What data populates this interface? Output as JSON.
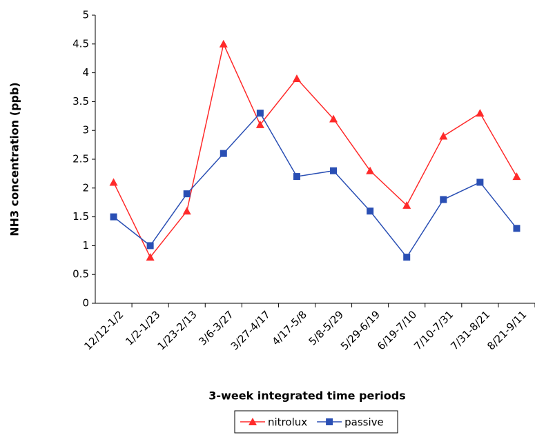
{
  "chart_data": {
    "type": "line",
    "y_label": "NH3 concentration (ppb)",
    "x_label": "3-week integrated time periods",
    "categories": [
      "12/12-1/2",
      "1/2-1/23",
      "1/23-2/13",
      "3/6-3/27",
      "3/27-4/17",
      "4/17-5/8",
      "5/8-5/29",
      "5/29-6/19",
      "6/19-7/10",
      "7/10-7/31",
      "7/31-8/21",
      "8/21-9/11"
    ],
    "series": [
      {
        "name": "nitrolux",
        "color": "#ff2a2a",
        "marker": "triangle",
        "values": [
          2.1,
          0.8,
          1.6,
          4.5,
          3.1,
          3.9,
          3.2,
          2.3,
          1.7,
          2.9,
          3.3,
          2.2
        ]
      },
      {
        "name": "passive",
        "color": "#2a4fb4",
        "marker": "square",
        "values": [
          1.5,
          1.0,
          1.9,
          2.6,
          3.3,
          2.2,
          2.3,
          1.6,
          0.8,
          1.8,
          2.1,
          1.3
        ]
      }
    ],
    "ylim": [
      0,
      5
    ],
    "yticks": [
      0,
      0.5,
      1,
      1.5,
      2,
      2.5,
      3,
      3.5,
      4,
      4.5,
      5
    ],
    "legend": "bottom"
  }
}
